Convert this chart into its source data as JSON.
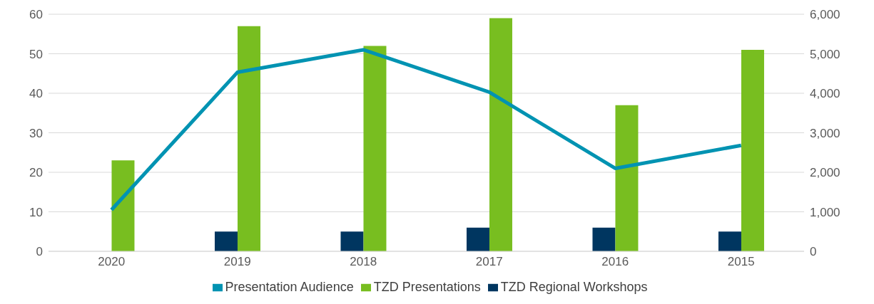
{
  "chart_data": {
    "type": "bar",
    "categories": [
      "2020",
      "2019",
      "2018",
      "2017",
      "2016",
      "2015"
    ],
    "series": [
      {
        "name": "TZD Regional Workshops",
        "color": "#003660",
        "values": [
          0,
          5,
          5,
          6,
          6,
          5
        ]
      },
      {
        "name": "TZD Presentations",
        "color": "#78be20",
        "values": [
          23,
          57,
          52,
          59,
          37,
          51
        ]
      },
      {
        "name": "Presentation Audience",
        "color": "#0093b2",
        "type": "line",
        "axis": "y2",
        "values": [
          1050,
          4530,
          5100,
          4030,
          2100,
          2680
        ]
      }
    ],
    "ylim": [
      0,
      60
    ],
    "yticks": [
      0,
      10,
      20,
      30,
      40,
      50,
      60
    ],
    "y2lim": [
      0,
      6000
    ],
    "y2ticks": [
      {
        "value": 0,
        "label": "0"
      },
      {
        "value": 1000,
        "label": "1,000"
      },
      {
        "value": 2000,
        "label": "2,000"
      },
      {
        "value": 3000,
        "label": "3,000"
      },
      {
        "value": 4000,
        "label": "4,000"
      },
      {
        "value": 5000,
        "label": "5,000"
      },
      {
        "value": 6000,
        "label": "6,000"
      }
    ],
    "grid": "y",
    "legend": "bottom",
    "marker": "none"
  }
}
